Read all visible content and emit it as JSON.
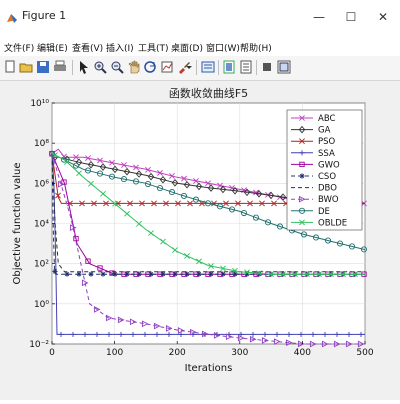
{
  "window": {
    "title": "Figure 1",
    "controls": {
      "minimize": "—",
      "maximize": "☐",
      "close": "✕"
    }
  },
  "menu": [
    "文件(F)",
    "编辑(E)",
    "查看(V)",
    "插入(I)",
    "工具(T)",
    "桌面(D)",
    "窗口(W)",
    "帮助(H)"
  ],
  "toolbar": {
    "icons": [
      "new-figure-icon",
      "open-icon",
      "save-icon",
      "print-icon",
      "pointer-icon",
      "zoom-in-icon",
      "zoom-out-icon",
      "pan-icon",
      "rotate-icon",
      "data-cursor-icon",
      "brush-icon",
      "link-icon",
      "colorbar-icon",
      "legend-icon",
      "hide-plot-tools-icon",
      "show-plot-tools-icon"
    ]
  },
  "chart_data": {
    "type": "line",
    "title": "函数收敛曲线F5",
    "xlabel": "Iterations",
    "ylabel": "Objective function value",
    "xlim": [
      0,
      500
    ],
    "ylim": [
      0.01,
      10000000000
    ],
    "yscale": "log",
    "xticks": [
      "0",
      "100",
      "200",
      "300",
      "400",
      "500"
    ],
    "yticks": [
      "10⁻²",
      "10⁰",
      "10²",
      "10⁴",
      "10⁶",
      "10⁸",
      "10¹⁰"
    ],
    "grid": true,
    "legend_position": "top-right",
    "series": [
      {
        "name": "ABC",
        "color": "#c040c0",
        "marker": "x",
        "dash": "",
        "points": [
          [
            0,
            30000000.0
          ],
          [
            10,
            50000000.0
          ],
          [
            20,
            20000000.0
          ],
          [
            50,
            20000000.0
          ],
          [
            100,
            10000000.0
          ],
          [
            150,
            5000000.0
          ],
          [
            200,
            2000000.0
          ],
          [
            250,
            1000000.0
          ],
          [
            300,
            500000.0
          ],
          [
            350,
            250000.0
          ],
          [
            400,
            120000.0
          ],
          [
            450,
            100000.0
          ],
          [
            500,
            100000.0
          ]
        ]
      },
      {
        "name": "GA",
        "color": "#333333",
        "marker": "diamond",
        "dash": "",
        "points": [
          [
            0,
            20000000.0
          ],
          [
            10,
            20000000.0
          ],
          [
            50,
            10000000.0
          ],
          [
            100,
            5000000.0
          ],
          [
            150,
            2500000.0
          ],
          [
            200,
            1000000.0
          ],
          [
            250,
            600000.0
          ],
          [
            300,
            400000.0
          ],
          [
            350,
            250000.0
          ],
          [
            400,
            150000.0
          ],
          [
            450,
            100000.0
          ],
          [
            500,
            100000.0
          ]
        ]
      },
      {
        "name": "PSO",
        "color": "#b02020",
        "marker": "x",
        "dash": "",
        "points": [
          [
            0,
            30000000.0
          ],
          [
            10,
            200000.0
          ],
          [
            15,
            100000.0
          ],
          [
            500,
            100000.0
          ]
        ]
      },
      {
        "name": "SSA",
        "color": "#4040b0",
        "marker": "+",
        "dash": "",
        "points": [
          [
            0,
            30000000.0
          ],
          [
            3,
            1000000.0
          ],
          [
            6,
            100.0
          ],
          [
            8,
            0.03
          ],
          [
            15,
            0.03
          ],
          [
            500,
            0.03
          ]
        ]
      },
      {
        "name": "GWO",
        "color": "#a000a0",
        "marker": "square",
        "dash": "",
        "points": [
          [
            0,
            30000000.0
          ],
          [
            20,
            1000000.0
          ],
          [
            40,
            1000.0
          ],
          [
            60,
            100.0
          ],
          [
            100,
            30
          ],
          [
            500,
            30
          ]
        ]
      },
      {
        "name": "CSO",
        "color": "#203070",
        "marker": "star",
        "dash": "4,3",
        "points": [
          [
            0,
            30000000.0
          ],
          [
            2,
            5000.0
          ],
          [
            4,
            50
          ],
          [
            6,
            30
          ],
          [
            500,
            30
          ]
        ]
      },
      {
        "name": "DBO",
        "color": "#303030",
        "marker": "none",
        "dash": "4,3",
        "points": [
          [
            0,
            30000000.0
          ],
          [
            5,
            10000.0
          ],
          [
            10,
            100.0
          ],
          [
            20,
            40
          ],
          [
            500,
            40
          ]
        ]
      },
      {
        "name": "BWO",
        "color": "#9040c0",
        "marker": "triangle",
        "dash": "4,3",
        "points": [
          [
            0,
            30000000.0
          ],
          [
            30,
            20000.0
          ],
          [
            60,
            1
          ],
          [
            90,
            0.2
          ],
          [
            150,
            0.1
          ],
          [
            200,
            0.05
          ],
          [
            250,
            0.03
          ],
          [
            300,
            0.02
          ],
          [
            400,
            0.01
          ],
          [
            500,
            0.01
          ]
        ]
      },
      {
        "name": "DE",
        "color": "#207070",
        "marker": "circle",
        "dash": "",
        "points": [
          [
            0,
            30000000.0
          ],
          [
            50,
            5000000.0
          ],
          [
            100,
            2000000.0
          ],
          [
            150,
            1000000.0
          ],
          [
            200,
            300000.0
          ],
          [
            250,
            100000.0
          ],
          [
            300,
            40000.0
          ],
          [
            350,
            10000.0
          ],
          [
            400,
            3000.0
          ],
          [
            450,
            1200.0
          ],
          [
            500,
            500.0
          ]
        ]
      },
      {
        "name": "OBLDE",
        "color": "#30c060",
        "marker": "x",
        "dash": "",
        "points": [
          [
            0,
            30000000.0
          ],
          [
            20,
            15000000.0
          ],
          [
            50,
            2000000.0
          ],
          [
            100,
            100000.0
          ],
          [
            150,
            5000.0
          ],
          [
            200,
            400.0
          ],
          [
            250,
            80
          ],
          [
            300,
            40
          ],
          [
            350,
            30
          ],
          [
            400,
            30
          ],
          [
            500,
            30
          ]
        ]
      }
    ]
  }
}
